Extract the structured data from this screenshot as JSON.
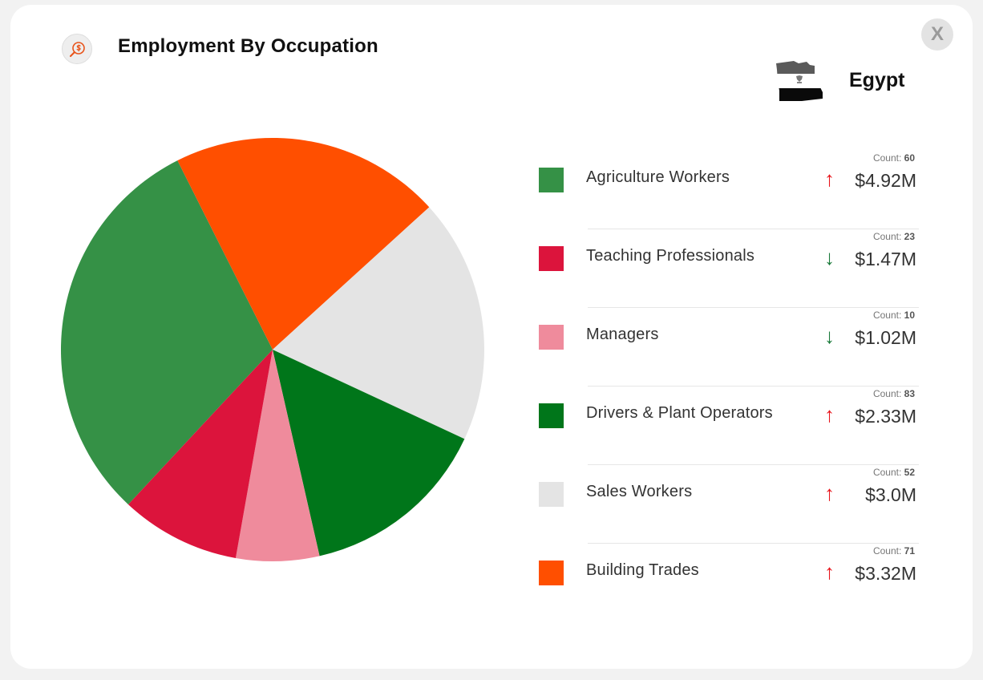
{
  "header": {
    "title": "Employment By Occupation",
    "icon": "dollar-search-icon",
    "close_label": "X"
  },
  "country": {
    "name": "Egypt",
    "flag_icon": "egypt-flag-map-icon"
  },
  "count_label": "Count: ",
  "chart_data": {
    "type": "pie",
    "categories": [
      "Agriculture Workers",
      "Teaching Professionals",
      "Managers",
      "Drivers & Plant Operators",
      "Sales Workers",
      "Building Trades"
    ],
    "values": [
      4.92,
      1.47,
      1.02,
      2.33,
      3.0,
      3.32
    ],
    "units": "$M",
    "counts": [
      60,
      23,
      10,
      83,
      52,
      71
    ],
    "value_labels": [
      "$4.92M",
      "$1.47M",
      "$1.02M",
      "$2.33M",
      "$3.0M",
      "$3.32M"
    ],
    "trends": [
      "up",
      "down",
      "down",
      "up",
      "up",
      "up"
    ],
    "colors": [
      "#359146",
      "#dc143c",
      "#ef8b9c",
      "#00761a",
      "#e4e4e4",
      "#ff4f00"
    ],
    "legend_position": "right"
  }
}
